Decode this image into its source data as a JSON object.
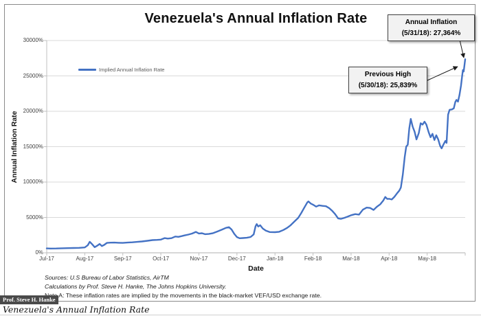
{
  "page": {
    "caption": "Venezuela's Annual Inflation Rate"
  },
  "badge": {
    "text": "Prof. Steve H. Hanke"
  },
  "chart_data": {
    "type": "line",
    "title": "Venezuela's Annual Inflation Rate",
    "xlabel": "Date",
    "ylabel": "Annual Inflation Rate",
    "grid": "horizontal",
    "line_color": "#4472c4",
    "legend": {
      "position": "inside-top-left",
      "entries": [
        "Implied Annual Inflation Rate"
      ]
    },
    "x_tick_labels": [
      "Jul-17",
      "Aug-17",
      "Sep-17",
      "Oct-17",
      "Nov-17",
      "Dec-17",
      "Jan-18",
      "Feb-18",
      "Mar-18",
      "Apr-18",
      "May-18"
    ],
    "y_ticks": [
      0,
      5000,
      10000,
      15000,
      20000,
      25000,
      30000
    ],
    "y_tick_labels": [
      "0%",
      "5000%",
      "10000%",
      "15000%",
      "20000%",
      "25000%",
      "30000%"
    ],
    "ylim": [
      0,
      30000
    ],
    "x_months_span": [
      0,
      11
    ],
    "series": [
      {
        "name": "Implied Annual Inflation Rate",
        "points": [
          [
            0,
            620
          ],
          [
            0.1,
            600
          ],
          [
            0.25,
            610
          ],
          [
            0.4,
            640
          ],
          [
            0.55,
            660
          ],
          [
            0.7,
            675
          ],
          [
            0.85,
            700
          ],
          [
            1,
            760
          ],
          [
            1.08,
            1080
          ],
          [
            1.13,
            1550
          ],
          [
            1.19,
            1230
          ],
          [
            1.26,
            800
          ],
          [
            1.33,
            1010
          ],
          [
            1.39,
            1250
          ],
          [
            1.45,
            950
          ],
          [
            1.51,
            1120
          ],
          [
            1.58,
            1400
          ],
          [
            1.68,
            1440
          ],
          [
            1.78,
            1450
          ],
          [
            1.89,
            1420
          ],
          [
            2,
            1400
          ],
          [
            2.12,
            1450
          ],
          [
            2.25,
            1490
          ],
          [
            2.38,
            1540
          ],
          [
            2.5,
            1600
          ],
          [
            2.65,
            1700
          ],
          [
            2.78,
            1800
          ],
          [
            2.9,
            1830
          ],
          [
            3,
            1860
          ],
          [
            3.1,
            2080
          ],
          [
            3.18,
            2010
          ],
          [
            3.28,
            2070
          ],
          [
            3.38,
            2300
          ],
          [
            3.46,
            2250
          ],
          [
            3.55,
            2360
          ],
          [
            3.62,
            2460
          ],
          [
            3.72,
            2570
          ],
          [
            3.82,
            2720
          ],
          [
            3.92,
            2950
          ],
          [
            4,
            2730
          ],
          [
            4.08,
            2770
          ],
          [
            4.16,
            2630
          ],
          [
            4.26,
            2660
          ],
          [
            4.36,
            2760
          ],
          [
            4.48,
            3000
          ],
          [
            4.6,
            3260
          ],
          [
            4.71,
            3520
          ],
          [
            4.79,
            3620
          ],
          [
            4.86,
            3280
          ],
          [
            4.93,
            2680
          ],
          [
            5,
            2220
          ],
          [
            5.07,
            2060
          ],
          [
            5.16,
            2090
          ],
          [
            5.26,
            2130
          ],
          [
            5.36,
            2230
          ],
          [
            5.44,
            2600
          ],
          [
            5.49,
            3750
          ],
          [
            5.52,
            4060
          ],
          [
            5.56,
            3720
          ],
          [
            5.61,
            3890
          ],
          [
            5.68,
            3430
          ],
          [
            5.76,
            3140
          ],
          [
            5.86,
            2930
          ],
          [
            6,
            2910
          ],
          [
            6.11,
            2970
          ],
          [
            6.22,
            3220
          ],
          [
            6.32,
            3520
          ],
          [
            6.41,
            3890
          ],
          [
            6.51,
            4420
          ],
          [
            6.61,
            4940
          ],
          [
            6.69,
            5620
          ],
          [
            6.77,
            6380
          ],
          [
            6.85,
            7120
          ],
          [
            6.88,
            7260
          ],
          [
            6.94,
            6960
          ],
          [
            7,
            6810
          ],
          [
            7.08,
            6520
          ],
          [
            7.16,
            6710
          ],
          [
            7.25,
            6630
          ],
          [
            7.34,
            6580
          ],
          [
            7.43,
            6290
          ],
          [
            7.51,
            5890
          ],
          [
            7.58,
            5470
          ],
          [
            7.66,
            4860
          ],
          [
            7.73,
            4800
          ],
          [
            7.81,
            4910
          ],
          [
            7.91,
            5110
          ],
          [
            8,
            5310
          ],
          [
            8.11,
            5470
          ],
          [
            8.21,
            5400
          ],
          [
            8.31,
            6100
          ],
          [
            8.41,
            6390
          ],
          [
            8.5,
            6340
          ],
          [
            8.59,
            6060
          ],
          [
            8.68,
            6510
          ],
          [
            8.77,
            6860
          ],
          [
            8.85,
            7420
          ],
          [
            8.9,
            7890
          ],
          [
            8.95,
            7610
          ],
          [
            9,
            7630
          ],
          [
            9.07,
            7530
          ],
          [
            9.14,
            7910
          ],
          [
            9.21,
            8420
          ],
          [
            9.27,
            8810
          ],
          [
            9.31,
            9230
          ],
          [
            9.36,
            11050
          ],
          [
            9.41,
            13550
          ],
          [
            9.45,
            15020
          ],
          [
            9.49,
            15260
          ],
          [
            9.53,
            17550
          ],
          [
            9.57,
            18920
          ],
          [
            9.62,
            17820
          ],
          [
            9.67,
            17110
          ],
          [
            9.72,
            16020
          ],
          [
            9.78,
            16930
          ],
          [
            9.83,
            18310
          ],
          [
            9.88,
            18120
          ],
          [
            9.93,
            18530
          ],
          [
            9.98,
            18120
          ],
          [
            10.04,
            17020
          ],
          [
            10.09,
            16330
          ],
          [
            10.14,
            16820
          ],
          [
            10.19,
            15940
          ],
          [
            10.24,
            16610
          ],
          [
            10.29,
            16030
          ],
          [
            10.34,
            15120
          ],
          [
            10.38,
            14760
          ],
          [
            10.43,
            15310
          ],
          [
            10.48,
            15820
          ],
          [
            10.51,
            15530
          ],
          [
            10.55,
            19520
          ],
          [
            10.59,
            20210
          ],
          [
            10.65,
            20260
          ],
          [
            10.7,
            20420
          ],
          [
            10.74,
            21310
          ],
          [
            10.77,
            21610
          ],
          [
            10.81,
            21360
          ],
          [
            10.85,
            22310
          ],
          [
            10.89,
            23620
          ],
          [
            10.92,
            25030
          ],
          [
            10.94,
            25839
          ],
          [
            10.96,
            25620
          ],
          [
            11,
            27364
          ]
        ]
      }
    ],
    "annotations": [
      {
        "line1": "Annual Inflation",
        "line2": "(5/31/18): 27,364%",
        "target_value": 27364
      },
      {
        "line1": "Previous High",
        "line2": "(5/30/18): 25,839%",
        "target_value": 25839
      }
    ],
    "footnotes": [
      "Sources: U.S Bureau of Labor Statistics, AirTM",
      "Calculations by Prof. Steve H. Hanke, The Johns Hopkins University.",
      "Note A: These inflation rates are implied by the movements in the black-market VEF/USD exchange rate."
    ]
  }
}
